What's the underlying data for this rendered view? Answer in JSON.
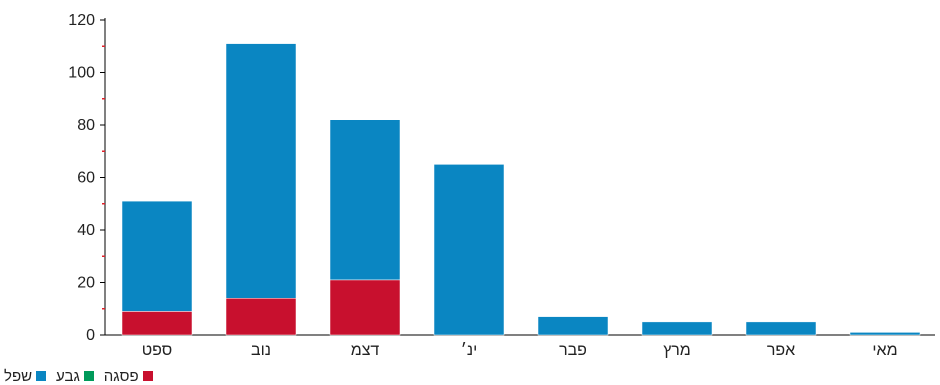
{
  "chart_data": {
    "type": "bar",
    "stacked": true,
    "categories": [
      "ספט",
      "נוב",
      "דצמ",
      "ינ׳",
      "פבר",
      "מרץ",
      "אפר",
      "מאי"
    ],
    "series": [
      {
        "name": "פסגה",
        "color": "#c8102e",
        "values": [
          9,
          14,
          21,
          0,
          0,
          0,
          0,
          0
        ]
      },
      {
        "name": "גבע",
        "color": "#009a5a",
        "values": [
          0,
          0,
          0,
          0,
          0,
          0,
          0,
          0
        ]
      },
      {
        "name": "שפל",
        "color": "#0a86c2",
        "values": [
          42,
          97,
          61,
          65,
          7,
          5,
          5,
          1
        ]
      }
    ],
    "ylim": [
      0,
      120
    ],
    "yticks": [
      0,
      20,
      40,
      60,
      80,
      100,
      120
    ],
    "title": "",
    "xlabel": "",
    "ylabel": "",
    "legend_position": "bottom-left"
  },
  "legend": [
    {
      "label": "פסגה",
      "color": "#c8102e"
    },
    {
      "label": "גבע",
      "color": "#009a5a"
    },
    {
      "label": "שפל",
      "color": "#0a86c2"
    }
  ]
}
